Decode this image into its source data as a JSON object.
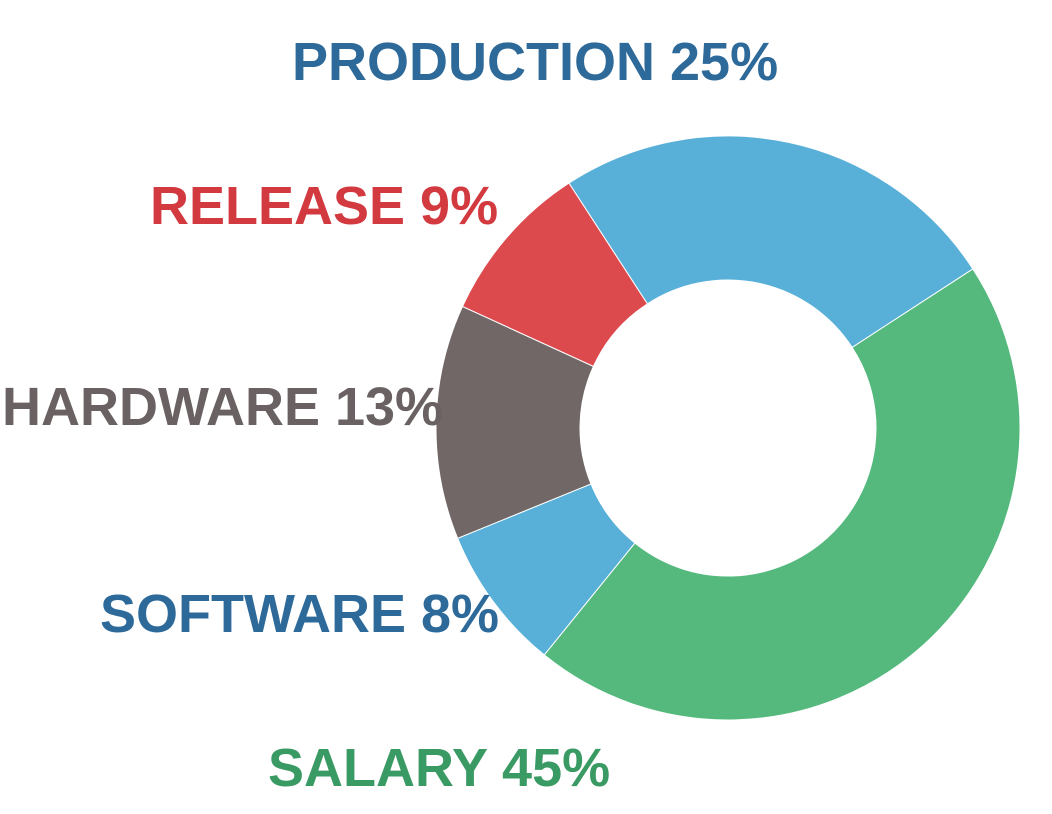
{
  "chart_data": {
    "type": "pie",
    "style": "donut",
    "title": "",
    "slices": [
      {
        "label": "PRODUCTION",
        "value": 25,
        "percent_label": "25%",
        "color": "#58b0d8",
        "label_color": "#2d6a9a"
      },
      {
        "label": "SALARY",
        "value": 45,
        "percent_label": "45%",
        "color": "#55b97e",
        "label_color": "#3a9a64"
      },
      {
        "label": "SOFTWARE",
        "value": 8,
        "percent_label": "8%",
        "color": "#58b0d8",
        "label_color": "#2d6a9a"
      },
      {
        "label": "HARDWARE",
        "value": 13,
        "percent_label": "13%",
        "color": "#716767",
        "label_color": "#6a6262"
      },
      {
        "label": "RELEASE",
        "value": 9,
        "percent_label": "9%",
        "color": "#dc4a4e",
        "label_color": "#d23a3f"
      }
    ]
  }
}
